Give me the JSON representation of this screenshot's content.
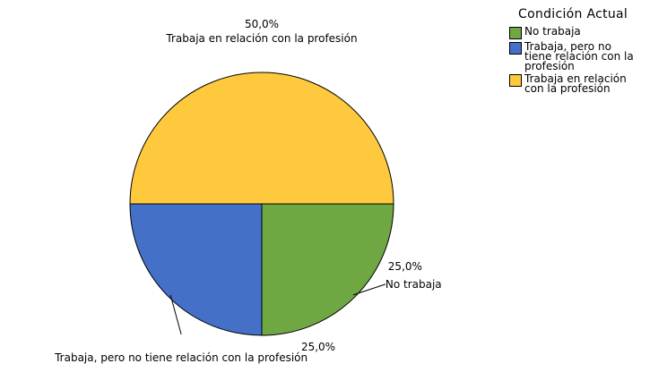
{
  "chart_data": {
    "type": "pie",
    "legend_title": "Condición Actual",
    "categories": [
      "No trabaja",
      "Trabaja, pero no tiene relación con la profesión",
      "Trabaja en relación con la profesión"
    ],
    "values": [
      25,
      25,
      50
    ],
    "value_labels": [
      "25,0%",
      "25,0%",
      "50,0%"
    ],
    "colors": [
      "#6fa843",
      "#4470c8",
      "#ffc93e"
    ]
  }
}
